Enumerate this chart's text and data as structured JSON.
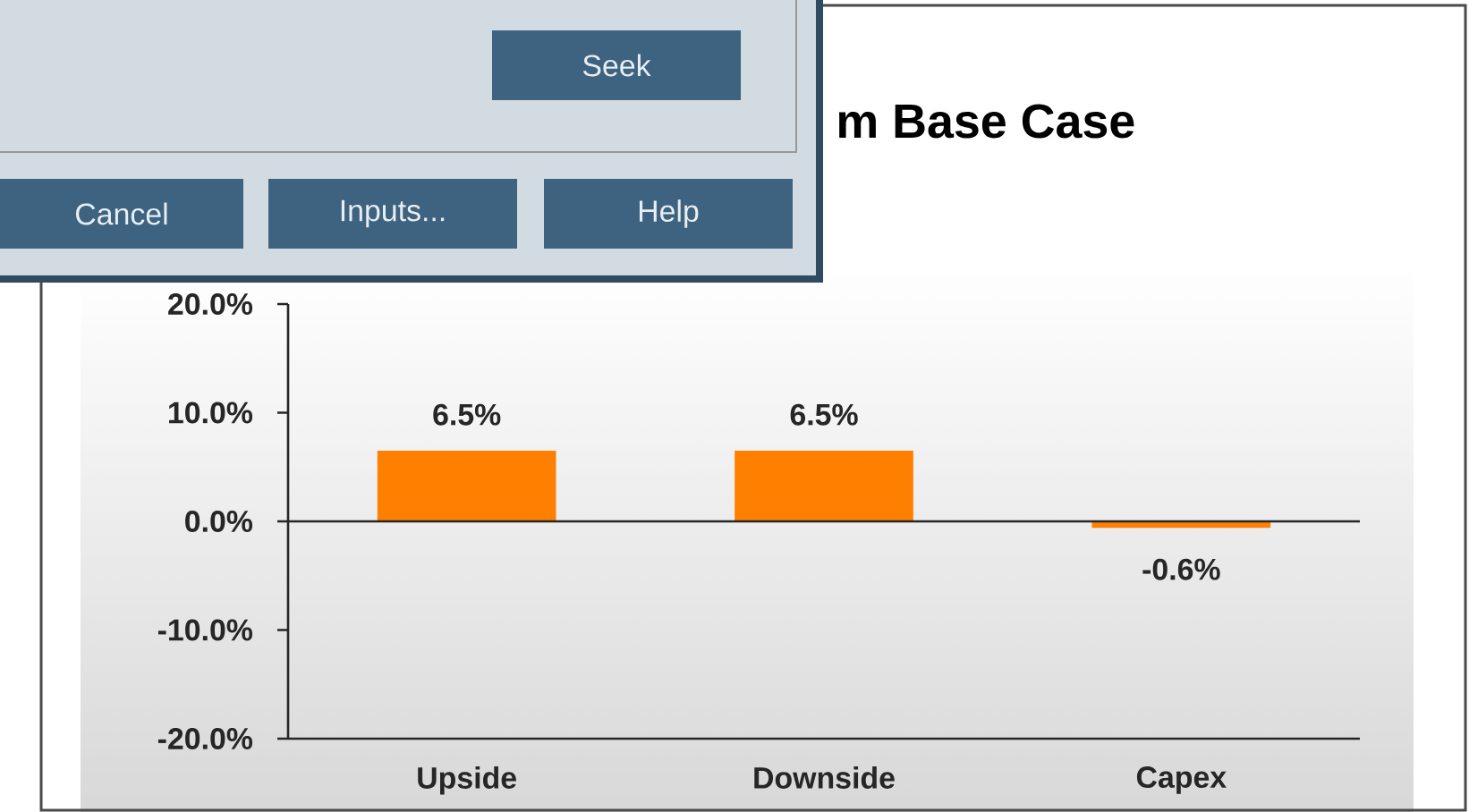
{
  "chart_data": {
    "type": "bar",
    "title": "m Base Case",
    "categories": [
      "Upside",
      "Downside",
      "Capex"
    ],
    "values": [
      6.5,
      6.5,
      -0.6
    ],
    "color": "#ff8000",
    "ylim": [
      -20,
      20
    ],
    "yticks": [
      {
        "value": -20,
        "label": "-20.0%"
      },
      {
        "value": -10,
        "label": "-10.0%"
      },
      {
        "value": 0,
        "label": "0.0%"
      },
      {
        "value": 10,
        "label": "10.0%"
      },
      {
        "value": 20,
        "label": "20.0%"
      }
    ],
    "value_labels": [
      "6.5%",
      "6.5%",
      "-0.6%"
    ],
    "annotations": [
      "Seek",
      "Cancel",
      "Inputs...",
      "Help"
    ]
  }
}
